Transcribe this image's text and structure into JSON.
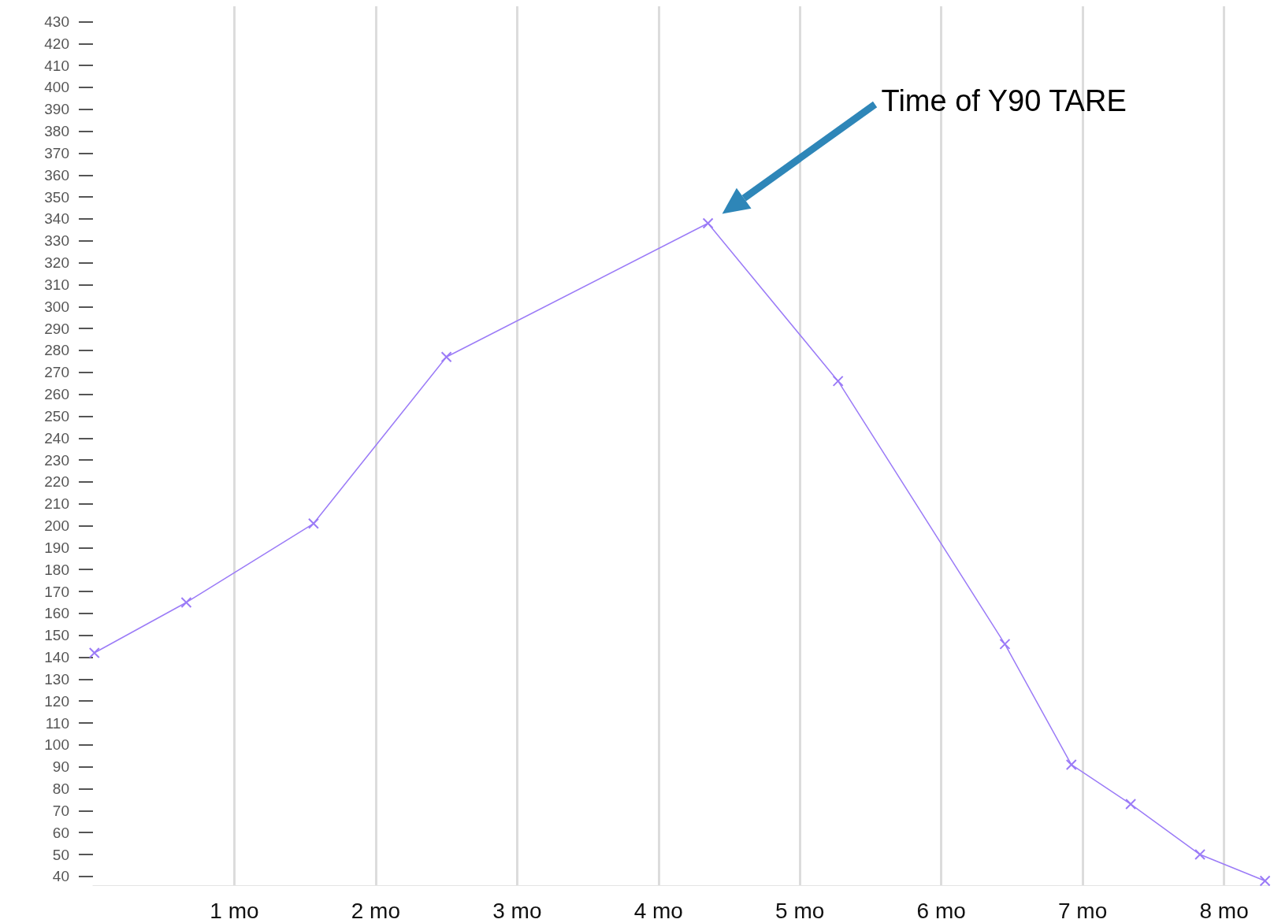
{
  "chart_data": {
    "type": "line",
    "x": [
      0.01,
      0.66,
      1.56,
      2.5,
      4.35,
      5.27,
      6.45,
      6.92,
      7.34,
      7.83,
      8.29
    ],
    "series": [
      {
        "color": "#9b7bf7",
        "values": [
          142,
          165,
          201,
          277,
          338,
          266,
          146,
          91,
          73,
          50,
          38
        ]
      }
    ],
    "xlim": [
      0,
      8.32
    ],
    "xticks": [
      {
        "value": 1,
        "label": "1 mo"
      },
      {
        "value": 2,
        "label": "2 mo"
      },
      {
        "value": 3,
        "label": "3 mo"
      },
      {
        "value": 4,
        "label": "4 mo"
      },
      {
        "value": 5,
        "label": "5 mo"
      },
      {
        "value": 6,
        "label": "6 mo"
      },
      {
        "value": 7,
        "label": "7 mo"
      },
      {
        "value": 8,
        "label": "8 mo"
      }
    ],
    "ylim": [
      36,
      437
    ],
    "yticks": [
      40,
      50,
      60,
      70,
      80,
      90,
      100,
      110,
      120,
      130,
      140,
      150,
      160,
      170,
      180,
      190,
      200,
      210,
      220,
      230,
      240,
      250,
      260,
      270,
      280,
      290,
      300,
      310,
      320,
      330,
      340,
      350,
      360,
      370,
      380,
      390,
      400,
      410,
      420,
      430
    ],
    "grid": "x",
    "marker": "cross",
    "line_style": "solid",
    "annotations": [
      "Time of Y90 TARE"
    ]
  }
}
